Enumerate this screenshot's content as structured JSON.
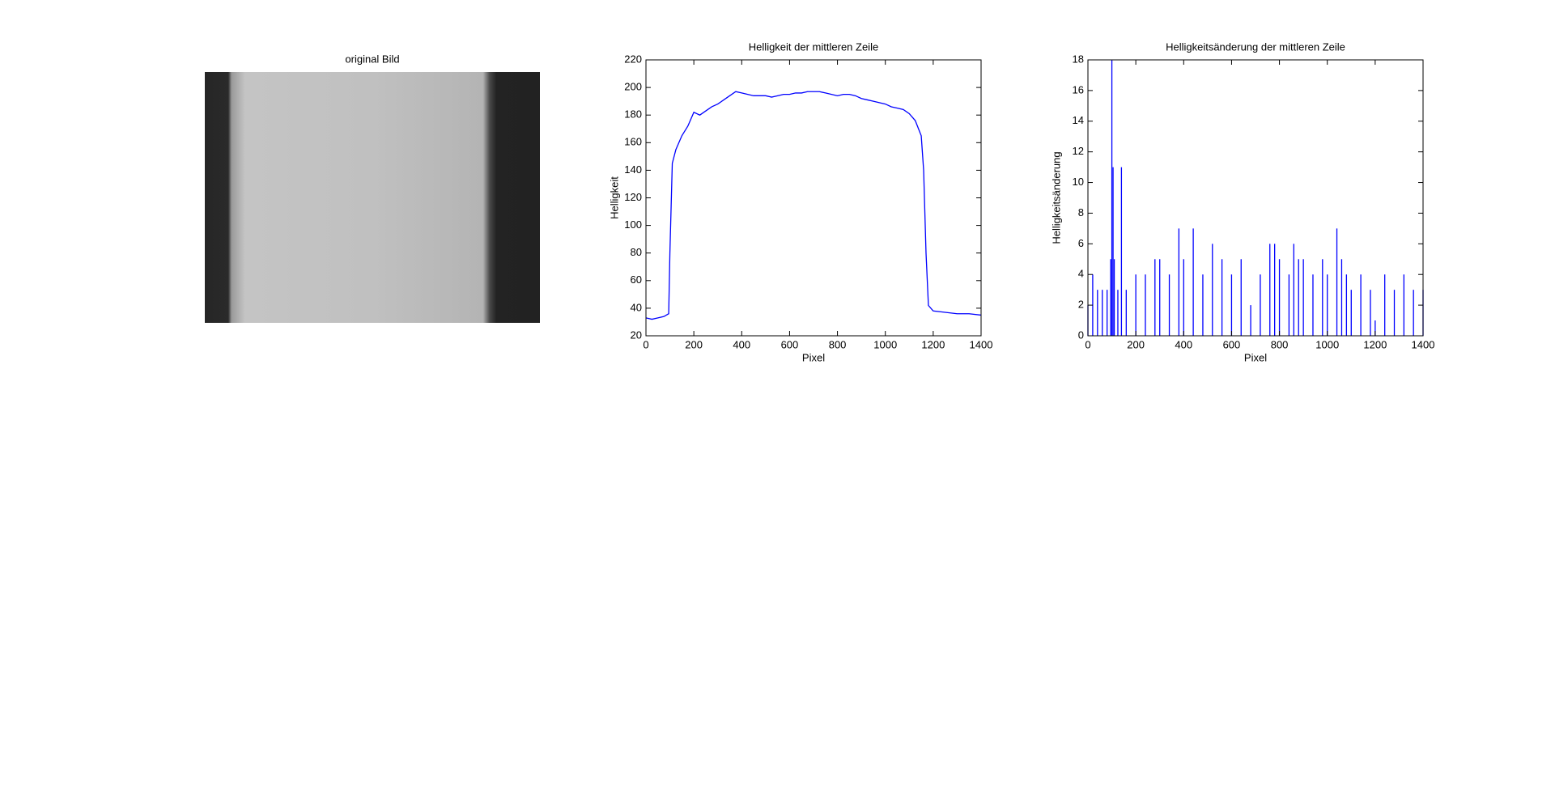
{
  "chart_data": [
    {
      "type": "image",
      "title": "original Bild"
    },
    {
      "type": "line",
      "title": "Helligkeit der mittleren Zeile",
      "xlabel": "Pixel",
      "ylabel": "Helligkeit",
      "x": [
        0,
        25,
        50,
        75,
        95,
        100,
        110,
        125,
        150,
        175,
        200,
        225,
        250,
        275,
        300,
        325,
        350,
        375,
        400,
        425,
        450,
        475,
        500,
        525,
        550,
        575,
        600,
        625,
        650,
        675,
        700,
        725,
        750,
        775,
        800,
        825,
        850,
        875,
        900,
        925,
        950,
        975,
        1000,
        1025,
        1050,
        1075,
        1100,
        1125,
        1150,
        1160,
        1170,
        1180,
        1200,
        1250,
        1300,
        1350,
        1400
      ],
      "series": [
        {
          "name": "Helligkeit",
          "color": "#0000ff",
          "values": [
            33,
            32,
            33,
            34,
            36,
            80,
            145,
            155,
            165,
            172,
            182,
            180,
            183,
            186,
            188,
            191,
            194,
            197,
            196,
            195,
            194,
            194,
            194,
            193,
            194,
            195,
            195,
            196,
            196,
            197,
            197,
            197,
            196,
            195,
            194,
            195,
            195,
            194,
            192,
            191,
            190,
            189,
            188,
            186,
            185,
            184,
            181,
            176,
            165,
            140,
            80,
            42,
            38,
            37,
            36,
            36,
            35
          ]
        }
      ],
      "xlim": [
        0,
        1400
      ],
      "xticks": [
        0,
        200,
        400,
        600,
        800,
        1000,
        1200,
        1400
      ],
      "ylim": [
        20,
        220
      ],
      "yticks": [
        20,
        40,
        60,
        80,
        100,
        120,
        140,
        160,
        180,
        200,
        220
      ]
    },
    {
      "type": "stem",
      "title": "Helligkeitsänderung der mittleren Zeile",
      "xlabel": "Pixel",
      "ylabel": "Helligkeitsänderung",
      "x": [
        0,
        20,
        40,
        60,
        80,
        95,
        100,
        105,
        110,
        125,
        140,
        160,
        200,
        240,
        280,
        300,
        340,
        380,
        400,
        440,
        480,
        520,
        560,
        600,
        640,
        680,
        720,
        760,
        780,
        800,
        840,
        860,
        880,
        900,
        940,
        980,
        1000,
        1040,
        1060,
        1080,
        1100,
        1140,
        1180,
        1200,
        1240,
        1280,
        1320,
        1360,
        1400
      ],
      "series": [
        {
          "name": "Helligkeitsänderung",
          "color": "#0000ff",
          "values": [
            2,
            4,
            3,
            3,
            3,
            5,
            18,
            11,
            5,
            3,
            11,
            3,
            4,
            4,
            5,
            5,
            4,
            7,
            5,
            7,
            4,
            6,
            5,
            4,
            5,
            2,
            4,
            6,
            6,
            5,
            4,
            6,
            5,
            5,
            4,
            5,
            4,
            7,
            5,
            4,
            3,
            4,
            3,
            1,
            4,
            3,
            4,
            3,
            3
          ]
        }
      ],
      "xlim": [
        0,
        1400
      ],
      "xticks": [
        0,
        200,
        400,
        600,
        800,
        1000,
        1200,
        1400
      ],
      "ylim": [
        0,
        18
      ],
      "yticks": [
        0,
        2,
        4,
        6,
        8,
        10,
        12,
        14,
        16,
        18
      ]
    }
  ]
}
